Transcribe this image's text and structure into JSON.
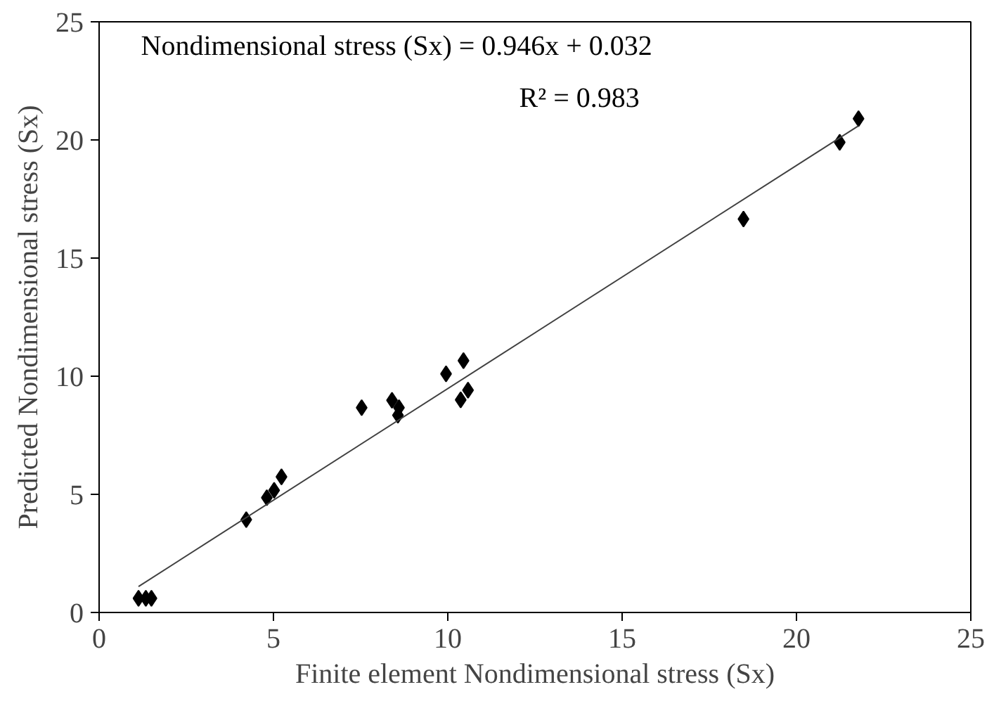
{
  "chart_data": {
    "type": "scatter",
    "xlabel": "Finite element Nondimensional stress (Sx)",
    "ylabel": "Predicted Nondimensional stress (Sx)",
    "xlim": [
      0,
      25
    ],
    "ylim": [
      0,
      25
    ],
    "xticks": [
      0,
      5,
      10,
      15,
      20,
      25
    ],
    "yticks": [
      0,
      5,
      10,
      15,
      20,
      25
    ],
    "grid": false,
    "annotations": [
      "Nondimensional stress (Sx) = 0.946x + 0.032",
      "R² = 0.983"
    ],
    "series": [
      {
        "marker": "diamond",
        "color": "#000000",
        "x": [
          1.13,
          1.34,
          1.5,
          4.22,
          4.81,
          5.02,
          5.23,
          7.53,
          8.4,
          8.6,
          8.57,
          9.95,
          10.45,
          10.58,
          10.37,
          18.48,
          21.24,
          21.78
        ],
        "values": [
          0.6,
          0.6,
          0.6,
          3.93,
          4.86,
          5.17,
          5.74,
          8.67,
          8.98,
          8.67,
          8.35,
          10.1,
          10.66,
          9.41,
          9.0,
          16.65,
          19.9,
          20.9
        ]
      },
      {
        "type": "line",
        "color": "#404040",
        "x": [
          1.13,
          21.78
        ],
        "values": [
          1.1,
          20.6
        ]
      }
    ]
  }
}
